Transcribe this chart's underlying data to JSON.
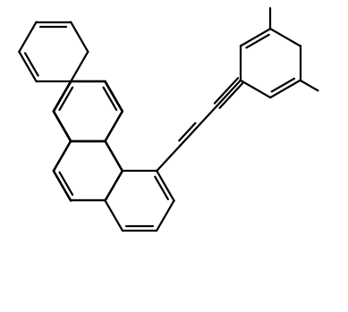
{
  "bg_color": "#ffffff",
  "line_color": "#000000",
  "line_width": 1.6,
  "figsize": [
    3.89,
    3.49
  ],
  "dpi": 100,
  "xlim": [
    0,
    10
  ],
  "ylim": [
    0,
    9
  ]
}
